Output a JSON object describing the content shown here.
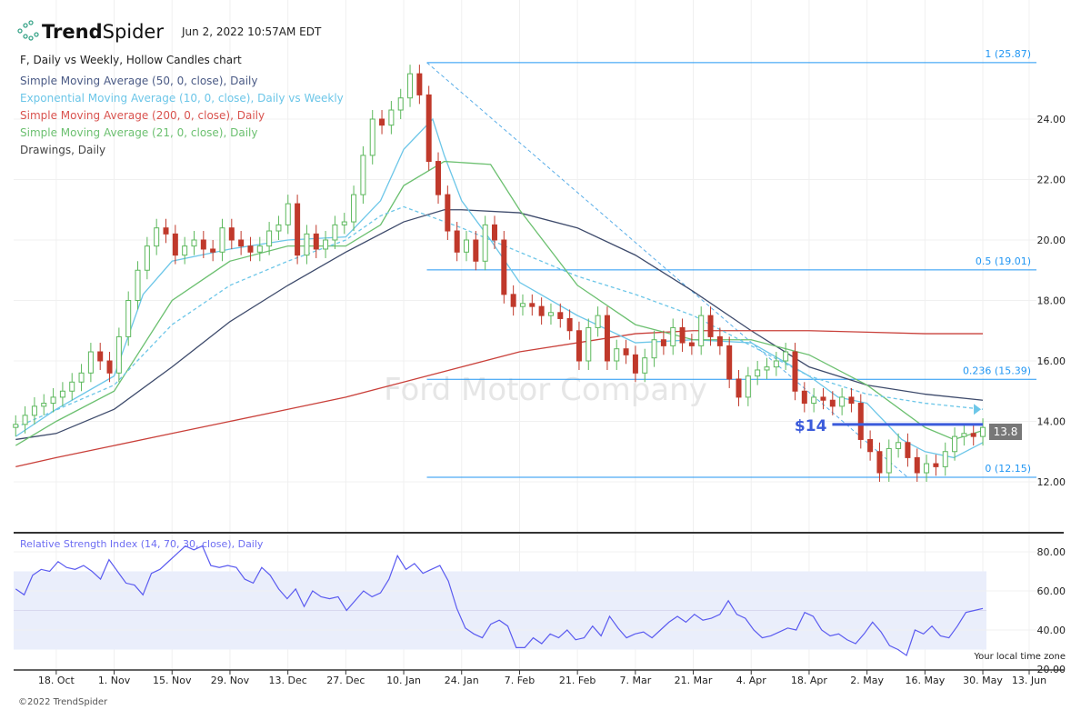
{
  "header": {
    "brand_bold": "Trend",
    "brand_light": "Spider",
    "timestamp": "Jun 2, 2022 10:57AM EDT",
    "chart_title": "F, Daily vs Weekly, Hollow Candles chart"
  },
  "legend": [
    {
      "label": "Simple Moving Average (50, 0, close), Daily",
      "color": "#4a5a85"
    },
    {
      "label": "Exponential Moving Average (10, 0, close), Daily vs Weekly",
      "color": "#6cc6e8"
    },
    {
      "label": "Simple Moving Average (200, 0, close), Daily",
      "color": "#d9534f"
    },
    {
      "label": "Simple Moving Average (21, 0, close), Daily",
      "color": "#6cc070"
    },
    {
      "label": "Drawings, Daily",
      "color": "#444444"
    }
  ],
  "watermark": "Ford Motor Company",
  "footer": {
    "copyright": "©2022 TrendSpider",
    "timezone": "Your local time zone"
  },
  "price_tag": "13.8",
  "annotation_label": "$14",
  "chart_data": [
    {
      "type": "candlestick",
      "title": "F, Daily vs Weekly, Hollow Candles chart",
      "ylim": [
        11,
        27
      ],
      "yticks": [
        12,
        14,
        16,
        18,
        20,
        22,
        24
      ],
      "ytick_labels": [
        "12.00",
        "14.00",
        "16.00",
        "18.00",
        "20.00",
        "22.00",
        "24.00"
      ],
      "xtick_labels": [
        "18. Oct",
        "1. Nov",
        "15. Nov",
        "29. Nov",
        "13. Dec",
        "27. Dec",
        "10. Jan",
        "24. Jan",
        "7. Feb",
        "21. Feb",
        "7. Mar",
        "21. Mar",
        "4. Apr",
        "18. Apr",
        "2. May",
        "16. May",
        "30. May",
        "13. Jun"
      ],
      "xtick_days": [
        5,
        15,
        25,
        35,
        45,
        55,
        65,
        75,
        85,
        95,
        105,
        115,
        125,
        135,
        145,
        155,
        165,
        173
      ],
      "day_range": [
        -2,
        165
      ],
      "closes": [
        13.9,
        14.2,
        14.5,
        14.6,
        14.8,
        15.0,
        15.3,
        15.6,
        16.3,
        16.0,
        15.6,
        16.8,
        18.0,
        19.0,
        19.8,
        20.4,
        20.2,
        19.5,
        19.8,
        20.0,
        19.7,
        19.6,
        20.4,
        20.0,
        19.8,
        19.6,
        19.8,
        20.3,
        20.5,
        21.2,
        19.5,
        20.2,
        19.7,
        20.0,
        20.5,
        20.6,
        21.5,
        22.8,
        24.0,
        23.8,
        24.3,
        24.7,
        25.5,
        24.8,
        22.6,
        21.5,
        20.3,
        19.6,
        20.0,
        19.3,
        20.5,
        20.0,
        18.2,
        17.8,
        17.9,
        17.8,
        17.5,
        17.6,
        17.4,
        17.0,
        16.0,
        17.1,
        17.5,
        16.0,
        16.4,
        16.2,
        15.6,
        16.1,
        16.7,
        16.5,
        17.1,
        16.6,
        16.5,
        17.5,
        16.8,
        16.5,
        15.4,
        14.8,
        15.5,
        15.7,
        15.8,
        16.0,
        16.3,
        15.0,
        14.6,
        14.8,
        14.7,
        14.5,
        14.8,
        14.6,
        13.4,
        13.0,
        12.3,
        13.1,
        13.3,
        12.8,
        12.3,
        12.6,
        12.5,
        13.0,
        13.5,
        13.6,
        13.5,
        13.8
      ],
      "moving_averages": [
        {
          "name": "SMA 50",
          "color": "#3d4a6b",
          "dashed": false,
          "points": [
            [
              -2,
              13.4
            ],
            [
              5,
              13.6
            ],
            [
              15,
              14.4
            ],
            [
              25,
              15.8
            ],
            [
              35,
              17.3
            ],
            [
              45,
              18.5
            ],
            [
              55,
              19.6
            ],
            [
              65,
              20.6
            ],
            [
              72,
              21.0
            ],
            [
              75,
              21.0
            ],
            [
              85,
              20.9
            ],
            [
              95,
              20.4
            ],
            [
              105,
              19.5
            ],
            [
              115,
              18.3
            ],
            [
              125,
              17.0
            ],
            [
              135,
              15.8
            ],
            [
              145,
              15.2
            ],
            [
              155,
              14.9
            ],
            [
              165,
              14.7
            ]
          ]
        },
        {
          "name": "SMA 200",
          "color": "#c9403a",
          "dashed": false,
          "points": [
            [
              -2,
              12.5
            ],
            [
              5,
              12.8
            ],
            [
              15,
              13.2
            ],
            [
              25,
              13.6
            ],
            [
              35,
              14.0
            ],
            [
              45,
              14.4
            ],
            [
              55,
              14.8
            ],
            [
              65,
              15.3
            ],
            [
              75,
              15.8
            ],
            [
              85,
              16.3
            ],
            [
              95,
              16.6
            ],
            [
              105,
              16.9
            ],
            [
              115,
              17.0
            ],
            [
              125,
              17.0
            ],
            [
              135,
              17.0
            ],
            [
              145,
              16.95
            ],
            [
              155,
              16.9
            ],
            [
              165,
              16.9
            ]
          ]
        },
        {
          "name": "EMA 10 Daily",
          "color": "#6cc6e8",
          "dashed": false,
          "points": [
            [
              -2,
              13.5
            ],
            [
              5,
              14.4
            ],
            [
              15,
              15.5
            ],
            [
              20,
              18.2
            ],
            [
              25,
              19.3
            ],
            [
              35,
              19.7
            ],
            [
              45,
              20.0
            ],
            [
              55,
              20.1
            ],
            [
              61,
              21.3
            ],
            [
              65,
              23.0
            ],
            [
              70,
              24.0
            ],
            [
              72,
              22.8
            ],
            [
              75,
              21.3
            ],
            [
              80,
              20.0
            ],
            [
              85,
              18.6
            ],
            [
              95,
              17.5
            ],
            [
              105,
              16.6
            ],
            [
              115,
              16.7
            ],
            [
              125,
              16.6
            ],
            [
              135,
              15.5
            ],
            [
              140,
              14.8
            ],
            [
              145,
              14.6
            ],
            [
              151,
              13.4
            ],
            [
              155,
              13.0
            ],
            [
              160,
              12.8
            ],
            [
              165,
              13.3
            ]
          ]
        },
        {
          "name": "SMA 21",
          "color": "#6cc070",
          "dashed": false,
          "points": [
            [
              -2,
              13.2
            ],
            [
              5,
              14.0
            ],
            [
              15,
              15.0
            ],
            [
              25,
              18.0
            ],
            [
              35,
              19.3
            ],
            [
              45,
              19.8
            ],
            [
              55,
              19.8
            ],
            [
              61,
              20.5
            ],
            [
              65,
              21.8
            ],
            [
              72,
              22.6
            ],
            [
              80,
              22.5
            ],
            [
              85,
              21.0
            ],
            [
              95,
              18.5
            ],
            [
              105,
              17.2
            ],
            [
              115,
              16.7
            ],
            [
              125,
              16.7
            ],
            [
              135,
              16.2
            ],
            [
              145,
              15.2
            ],
            [
              155,
              13.8
            ],
            [
              160,
              13.4
            ],
            [
              165,
              13.7
            ]
          ]
        },
        {
          "name": "EMA 10 Weekly",
          "color": "#6cc6e8",
          "dashed": true,
          "points": [
            [
              -2,
              13.8
            ],
            [
              15,
              15.2
            ],
            [
              25,
              17.2
            ],
            [
              35,
              18.5
            ],
            [
              45,
              19.3
            ],
            [
              55,
              20.0
            ],
            [
              61,
              20.8
            ],
            [
              65,
              21.1
            ],
            [
              75,
              20.4
            ],
            [
              85,
              19.6
            ],
            [
              95,
              18.8
            ],
            [
              105,
              18.2
            ],
            [
              115,
              17.5
            ],
            [
              125,
              16.5
            ],
            [
              135,
              15.5
            ],
            [
              145,
              14.9
            ],
            [
              155,
              14.6
            ],
            [
              165,
              14.4
            ]
          ]
        }
      ],
      "fibonacci": [
        {
          "label": "1 (25.87)",
          "value": 25.87
        },
        {
          "label": "0.5 (19.01)",
          "value": 19.01
        },
        {
          "label": "0.236 (15.39)",
          "value": 15.39
        },
        {
          "label": "0 (12.15)",
          "value": 12.15
        }
      ],
      "fib_start_day": 69,
      "trendline": {
        "from": [
          69,
          25.87
        ],
        "to": [
          152,
          12.15
        ]
      },
      "support_line": {
        "value": 13.9,
        "from_day": 139,
        "to_day": 165
      }
    },
    {
      "type": "line",
      "title": "Relative Strength Index (14, 70, 30, close), Daily",
      "ylim": [
        20,
        88
      ],
      "yticks": [
        20,
        40,
        60,
        80
      ],
      "ytick_labels": [
        "20.00",
        "40.00",
        "60.00",
        "80.00"
      ],
      "band": [
        30,
        70
      ],
      "midline": 50,
      "color": "#5b5bf0",
      "values": [
        61,
        58,
        68,
        71,
        70,
        75,
        72,
        71,
        73,
        70,
        66,
        76,
        70,
        64,
        63,
        58,
        69,
        71,
        75,
        79,
        83,
        81,
        83,
        73,
        72,
        73,
        72,
        66,
        64,
        72,
        68,
        61,
        56,
        61,
        52,
        60,
        57,
        56,
        57,
        50,
        55,
        60,
        57,
        59,
        66,
        78,
        71,
        74,
        69,
        71,
        73,
        65,
        51,
        41,
        38,
        36,
        43,
        45,
        42,
        31,
        31,
        36,
        33,
        38,
        36,
        40,
        35,
        36,
        42,
        37,
        47,
        41,
        36,
        38,
        39,
        36,
        40,
        44,
        47,
        44,
        48,
        45,
        46,
        48,
        55,
        48,
        46,
        40,
        36,
        37,
        39,
        41,
        40,
        49,
        47,
        40,
        37,
        38,
        35,
        33,
        38,
        44,
        39,
        32,
        30,
        27,
        40,
        38,
        42,
        37,
        36,
        42,
        49,
        50,
        51
      ]
    }
  ]
}
